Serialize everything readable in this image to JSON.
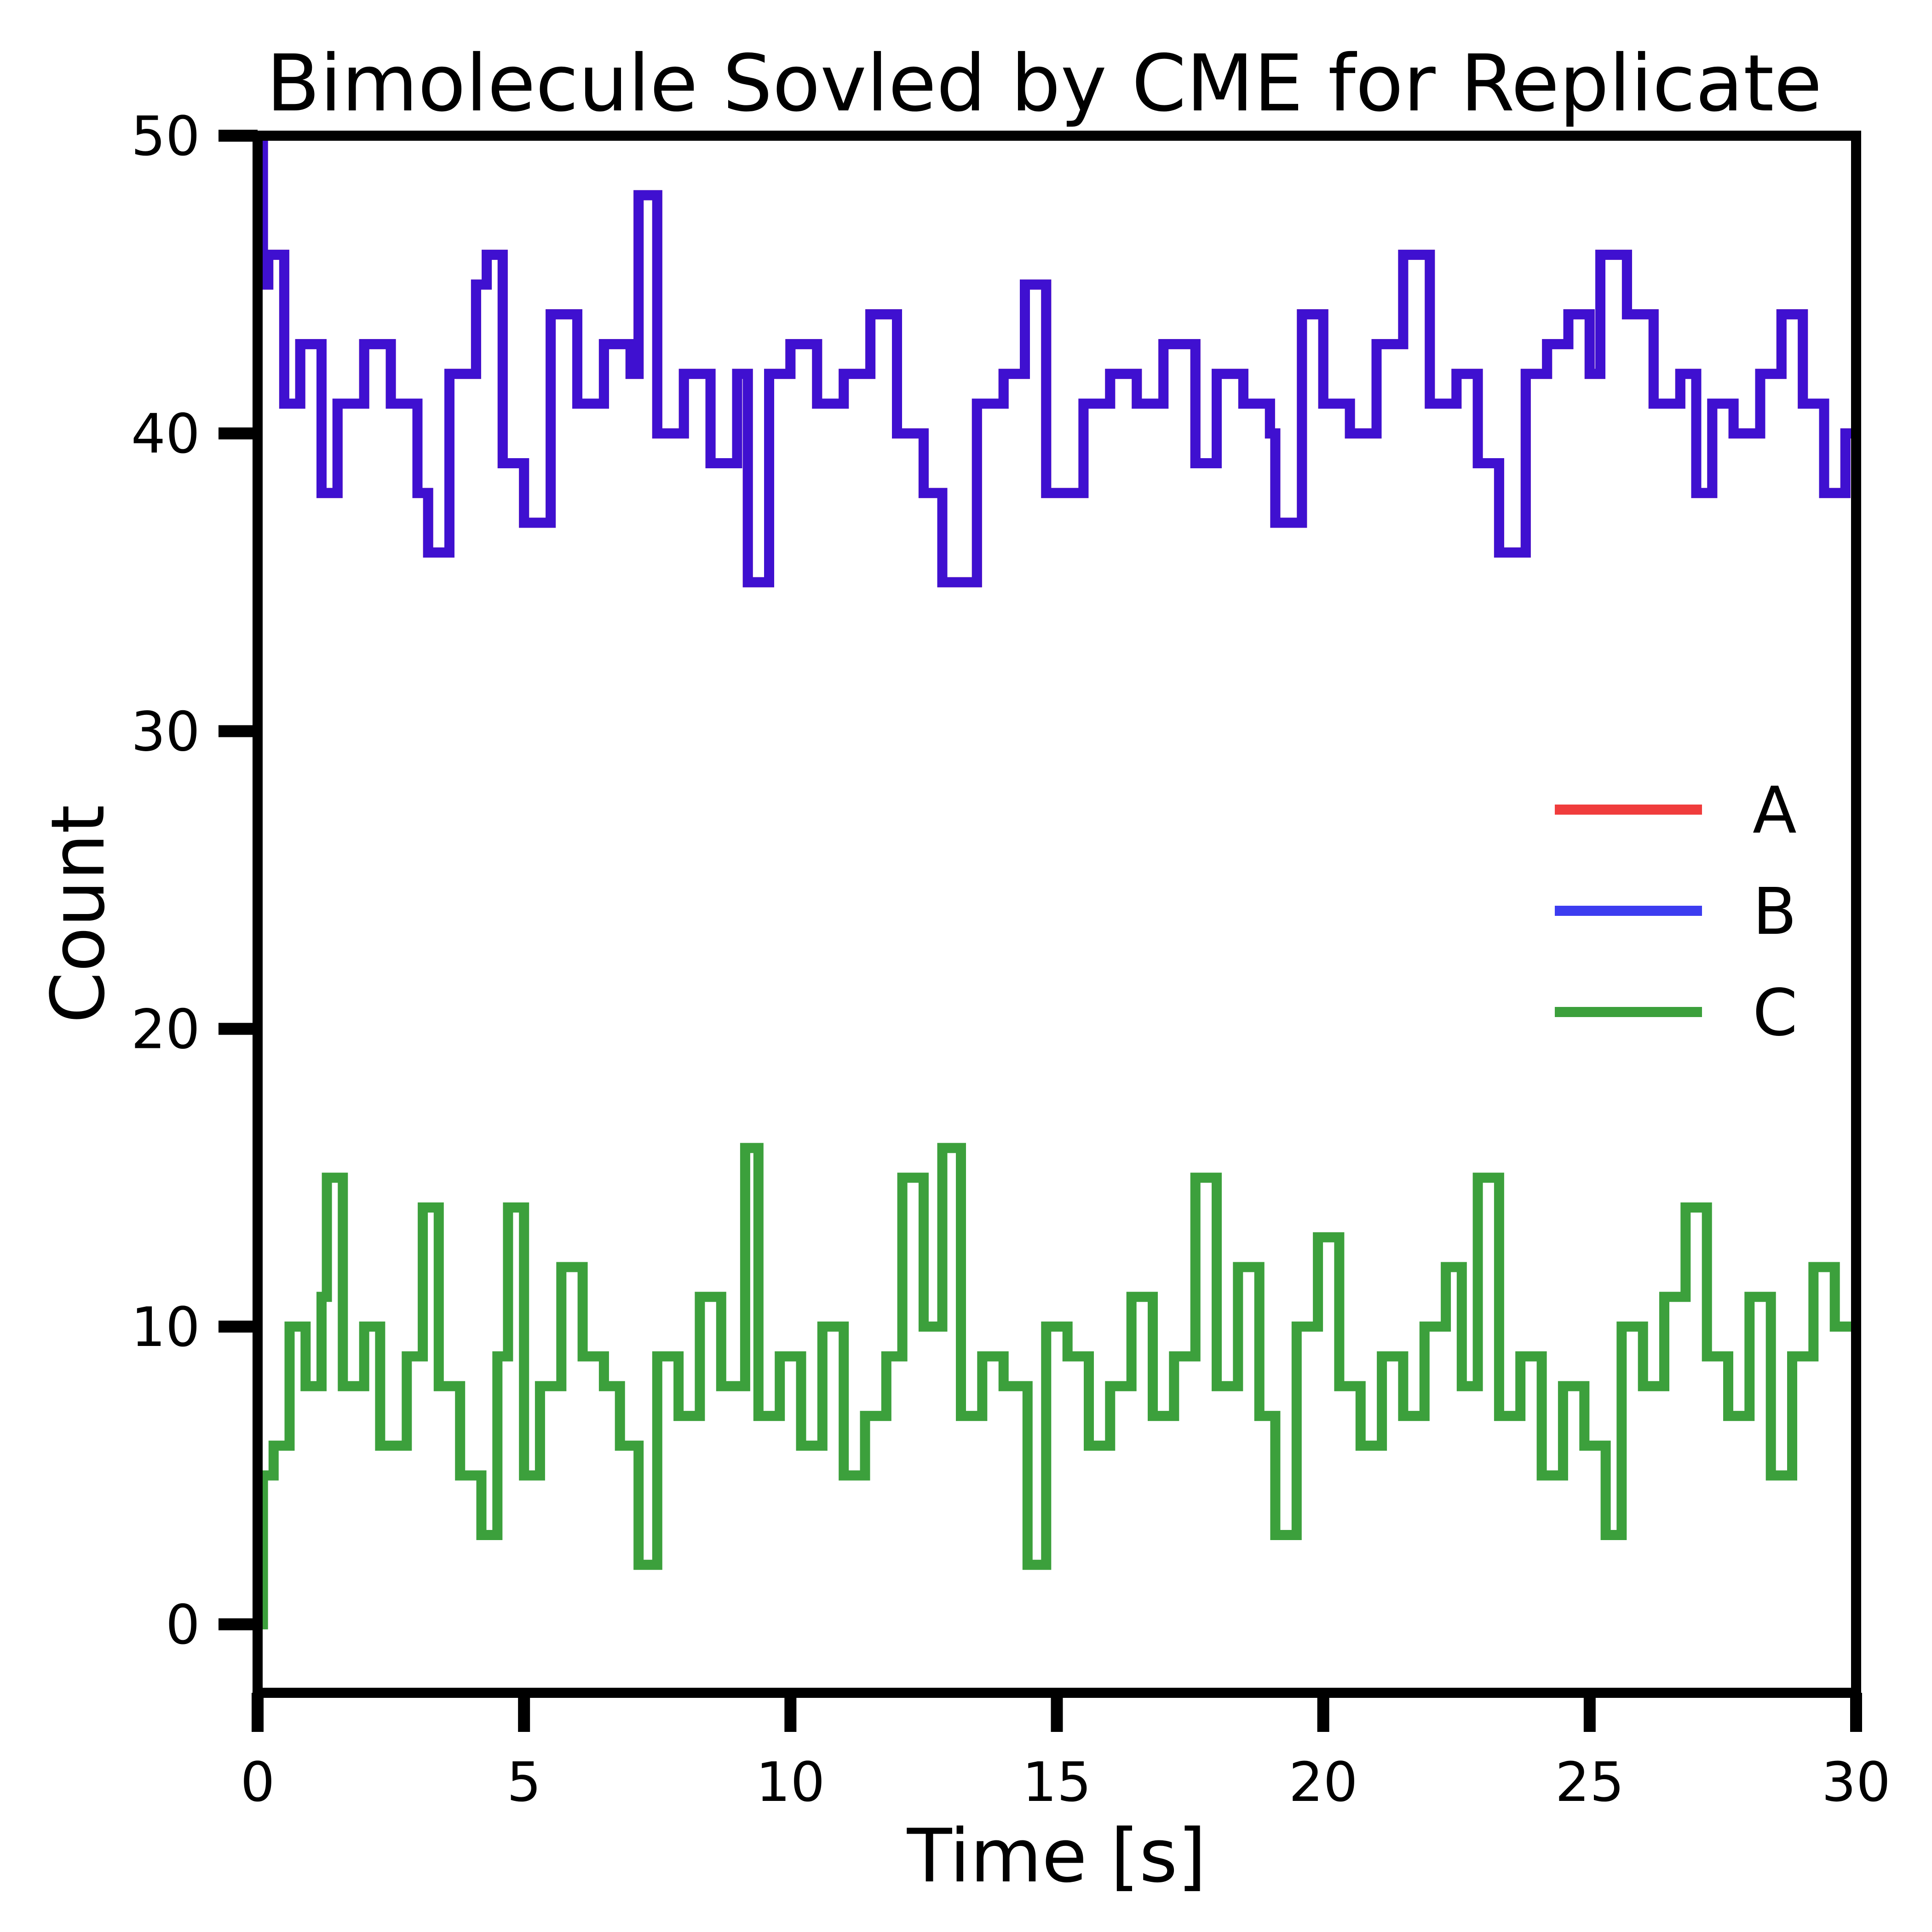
{
  "chart_data": {
    "type": "line",
    "title": "Bimolecule Sovled by CME for Replicate",
    "xlabel": "Time [s]",
    "ylabel": "Count",
    "xlim": [
      0,
      30
    ],
    "ylim": [
      -2.3,
      50
    ],
    "xticks": [
      0,
      5,
      10,
      15,
      20,
      25,
      30
    ],
    "yticks": [
      0,
      10,
      20,
      30,
      40,
      50
    ],
    "grid": false,
    "legend_position": "center-right",
    "series": [
      {
        "name": "A",
        "color": "#f03c3c",
        "x": [
          0,
          0.1,
          0.2,
          0.5,
          0.8,
          1.2,
          1.5,
          2.0,
          2.5,
          3.0,
          3.2,
          3.6,
          4.1,
          4.3,
          4.6,
          5.0,
          5.5,
          6.0,
          6.5,
          7.0,
          7.15,
          7.5,
          8.0,
          8.5,
          9.0,
          9.2,
          9.6,
          10.0,
          10.5,
          11.0,
          11.5,
          12.0,
          12.5,
          12.85,
          13.5,
          14.0,
          14.4,
          14.8,
          15.5,
          16.0,
          16.5,
          17.0,
          17.6,
          18.0,
          18.5,
          19.0,
          19.1,
          19.6,
          20.0,
          20.5,
          21.0,
          21.5,
          22.0,
          22.5,
          22.9,
          23.3,
          23.8,
          24.2,
          24.6,
          25.0,
          25.2,
          25.7,
          26.2,
          26.7,
          27.0,
          27.3,
          27.7,
          28.2,
          28.6,
          29.0,
          29.4,
          29.8,
          30.0
        ],
        "y": [
          50,
          45,
          46,
          41,
          43,
          38,
          41,
          43,
          41,
          38,
          36,
          42,
          45,
          46,
          39,
          37,
          44,
          41,
          43,
          42,
          48,
          40,
          42,
          39,
          42,
          35,
          42,
          43,
          41,
          42,
          44,
          40,
          38,
          35,
          41,
          42,
          45,
          38,
          41,
          42,
          41,
          43,
          39,
          42,
          41,
          40,
          37,
          44,
          41,
          40,
          43,
          46,
          41,
          42,
          39,
          36,
          42,
          43,
          44,
          42,
          46,
          44,
          41,
          42,
          38,
          41,
          40,
          42,
          44,
          41,
          38,
          40,
          35
        ]
      },
      {
        "name": "B",
        "color": "#3c3cf0",
        "x": [
          0,
          0.1,
          0.2,
          0.5,
          0.8,
          1.2,
          1.5,
          2.0,
          2.5,
          3.0,
          3.2,
          3.6,
          4.1,
          4.3,
          4.6,
          5.0,
          5.5,
          6.0,
          6.5,
          7.0,
          7.15,
          7.5,
          8.0,
          8.5,
          9.0,
          9.2,
          9.6,
          10.0,
          10.5,
          11.0,
          11.5,
          12.0,
          12.5,
          12.85,
          13.5,
          14.0,
          14.4,
          14.8,
          15.5,
          16.0,
          16.5,
          17.0,
          17.6,
          18.0,
          18.5,
          19.0,
          19.1,
          19.6,
          20.0,
          20.5,
          21.0,
          21.5,
          22.0,
          22.5,
          22.9,
          23.3,
          23.8,
          24.2,
          24.6,
          25.0,
          25.2,
          25.7,
          26.2,
          26.7,
          27.0,
          27.3,
          27.7,
          28.2,
          28.6,
          29.0,
          29.4,
          29.8,
          30.0
        ],
        "y": [
          50,
          45,
          46,
          41,
          43,
          38,
          41,
          43,
          41,
          38,
          36,
          42,
          45,
          46,
          39,
          37,
          44,
          41,
          43,
          42,
          48,
          40,
          42,
          39,
          42,
          35,
          42,
          43,
          41,
          42,
          44,
          40,
          38,
          35,
          41,
          42,
          45,
          38,
          41,
          42,
          41,
          43,
          39,
          42,
          41,
          40,
          37,
          44,
          41,
          40,
          43,
          46,
          41,
          42,
          39,
          36,
          42,
          43,
          44,
          42,
          46,
          44,
          41,
          42,
          38,
          41,
          40,
          42,
          44,
          41,
          38,
          40,
          35
        ]
      },
      {
        "name": "C",
        "color": "#3ca03c",
        "x": [
          0,
          0.1,
          0.3,
          0.6,
          0.9,
          1.2,
          1.3,
          1.6,
          2.0,
          2.3,
          2.8,
          3.1,
          3.4,
          3.8,
          4.2,
          4.5,
          4.7,
          5.0,
          5.3,
          5.7,
          6.1,
          6.5,
          6.8,
          7.15,
          7.5,
          7.9,
          8.3,
          8.7,
          9.15,
          9.4,
          9.8,
          10.2,
          10.6,
          11.0,
          11.4,
          11.8,
          12.1,
          12.5,
          12.85,
          13.2,
          13.6,
          14.0,
          14.45,
          14.8,
          15.2,
          15.6,
          16.0,
          16.4,
          16.8,
          17.2,
          17.6,
          18.0,
          18.4,
          18.8,
          19.1,
          19.5,
          19.9,
          20.3,
          20.7,
          21.1,
          21.5,
          21.9,
          22.3,
          22.6,
          22.9,
          23.3,
          23.7,
          24.1,
          24.5,
          24.9,
          25.3,
          25.6,
          26.0,
          26.4,
          26.8,
          27.2,
          27.6,
          28.0,
          28.4,
          28.8,
          29.2,
          29.6,
          30.0
        ],
        "y": [
          0,
          5,
          6,
          10,
          8,
          11,
          15,
          8,
          10,
          6,
          9,
          14,
          8,
          5,
          3,
          9,
          14,
          5,
          8,
          12,
          9,
          8,
          6,
          2,
          9,
          7,
          11,
          8,
          16,
          7,
          9,
          6,
          10,
          5,
          7,
          9,
          15,
          10,
          16,
          7,
          9,
          8,
          2,
          10,
          9,
          6,
          8,
          11,
          7,
          9,
          15,
          8,
          12,
          7,
          3,
          10,
          13,
          8,
          6,
          9,
          7,
          10,
          12,
          8,
          15,
          7,
          9,
          5,
          8,
          6,
          3,
          10,
          8,
          11,
          14,
          9,
          7,
          11,
          5,
          9,
          12,
          10,
          15
        ]
      }
    ]
  }
}
